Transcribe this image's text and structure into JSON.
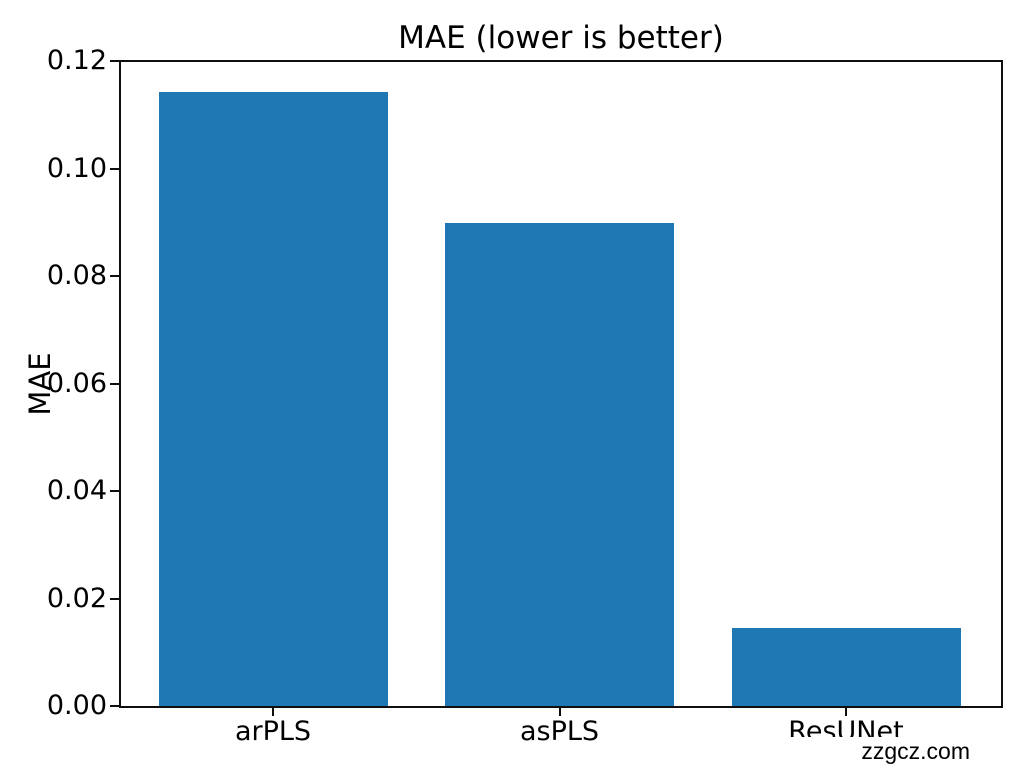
{
  "chart_data": {
    "type": "bar",
    "title": "MAE (lower is better)",
    "xlabel": "",
    "ylabel": "MAE",
    "categories": [
      "arPLS",
      "asPLS",
      "ResUNet"
    ],
    "values": [
      0.1145,
      0.0902,
      0.0145
    ],
    "ylim": [
      0.0,
      0.12
    ],
    "ytick_labels": [
      "0.00",
      "0.02",
      "0.04",
      "0.06",
      "0.08",
      "0.10",
      "0.12"
    ],
    "ytick_values": [
      0.0,
      0.02,
      0.04,
      0.06,
      0.08,
      0.1,
      0.12
    ],
    "bar_color": "#1f77b4",
    "axis_color": "#0f0f0f",
    "grid": false,
    "legend": "none"
  },
  "watermark": "zzgcz.com"
}
